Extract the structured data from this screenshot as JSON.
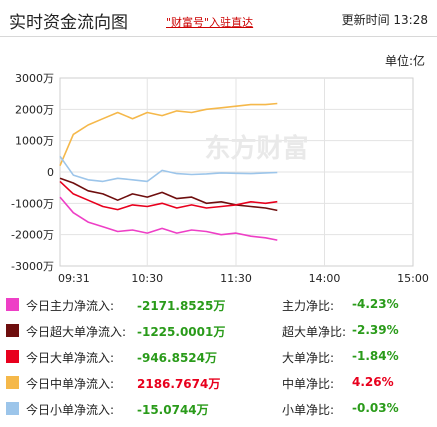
{
  "header": {
    "title": "实时资金流向图",
    "promo": "\"财富号\"入驻直达",
    "updated": "更新时间 13:28"
  },
  "unit_label": "单位:亿",
  "watermark": "东方财富",
  "chart_data": {
    "type": "line",
    "x_ticks": [
      "09:31",
      "10:30",
      "11:30",
      "14:00",
      "15:00"
    ],
    "y_ticks": [
      "3000万",
      "2000万",
      "1000万",
      "0",
      "-1000万",
      "-2000万",
      "-3000万"
    ],
    "ylim": [
      -3000,
      3000
    ],
    "x": [
      "09:31",
      "09:40",
      "09:50",
      "10:00",
      "10:10",
      "10:20",
      "10:30",
      "10:40",
      "10:50",
      "11:00",
      "11:10",
      "11:20",
      "11:30",
      "13:10",
      "13:20",
      "13:28"
    ],
    "series": [
      {
        "name": "今日主力净流入",
        "color": "#ee3fc6",
        "values": [
          -800,
          -1300,
          -1600,
          -1750,
          -1900,
          -1850,
          -1950,
          -1800,
          -1950,
          -1850,
          -1900,
          -2000,
          -1950,
          -2050,
          -2100,
          -2172
        ]
      },
      {
        "name": "今日超大单净流入",
        "color": "#6e0e0e",
        "values": [
          -200,
          -350,
          -600,
          -700,
          -900,
          -700,
          -800,
          -650,
          -850,
          -800,
          -1000,
          -950,
          -1050,
          -1100,
          -1150,
          -1225
        ]
      },
      {
        "name": "今日大单净流入",
        "color": "#e8001d",
        "values": [
          -300,
          -700,
          -900,
          -1100,
          -1200,
          -1050,
          -1100,
          -1000,
          -1150,
          -1050,
          -1150,
          -1100,
          -1050,
          -950,
          -1000,
          -947
        ]
      },
      {
        "name": "今日中单净流入",
        "color": "#f5b84a",
        "values": [
          200,
          1200,
          1500,
          1700,
          1900,
          1700,
          1900,
          1800,
          1950,
          1900,
          2000,
          2050,
          2100,
          2150,
          2150,
          2187
        ]
      },
      {
        "name": "今日小单净流入",
        "color": "#9cc5ea",
        "values": [
          500,
          -100,
          -250,
          -300,
          -200,
          -250,
          -300,
          50,
          -50,
          -80,
          -60,
          -30,
          -40,
          -50,
          -30,
          -15
        ]
      }
    ]
  },
  "legend": [
    {
      "label": "今日主力净流入:",
      "value": "-2171.8525万",
      "value_color": "#2a9b1a",
      "ratio_label": "主力净比:",
      "ratio_value": "-4.23%",
      "ratio_color": "#2a9b1a",
      "swatch": "#ee3fc6"
    },
    {
      "label": "今日超大单净流入:",
      "value": "-1225.0001万",
      "value_color": "#2a9b1a",
      "ratio_label": "超大单净比:",
      "ratio_value": "-2.39%",
      "ratio_color": "#2a9b1a",
      "swatch": "#6e0e0e"
    },
    {
      "label": "今日大单净流入:",
      "value": "-946.8524万",
      "value_color": "#2a9b1a",
      "ratio_label": "大单净比:",
      "ratio_value": "-1.84%",
      "ratio_color": "#2a9b1a",
      "swatch": "#e8001d"
    },
    {
      "label": "今日中单净流入:",
      "value": "2186.7674万",
      "value_color": "#e8001d",
      "ratio_label": "中单净比:",
      "ratio_value": "4.26%",
      "ratio_color": "#e8001d",
      "swatch": "#f5b84a"
    },
    {
      "label": "今日小单净流入:",
      "value": "-15.0744万",
      "value_color": "#2a9b1a",
      "ratio_label": "小单净比:",
      "ratio_value": "-0.03%",
      "ratio_color": "#2a9b1a",
      "swatch": "#9cc5ea"
    }
  ]
}
